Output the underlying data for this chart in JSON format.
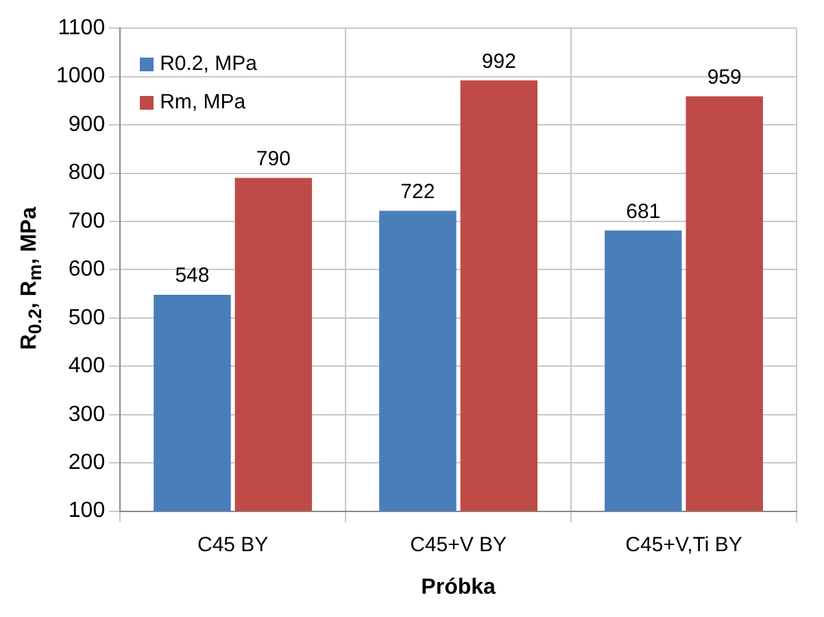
{
  "chart_data": {
    "type": "bar",
    "xlabel": "Próbka",
    "ylabel": "R$_{0.2}$, R$_{m}$,  MPa",
    "categories": [
      "C45 BY",
      "C45+V BY",
      "C45+V,Ti BY"
    ],
    "series": [
      {
        "name": "R0.2, MPa",
        "color": "#4a7ebb",
        "values": [
          548,
          722,
          681
        ]
      },
      {
        "name": "Rm, MPa",
        "color": "#be4b48",
        "values": [
          790,
          992,
          959
        ]
      }
    ],
    "ylim": [
      100,
      1100
    ],
    "yticks": [
      100,
      200,
      300,
      400,
      500,
      600,
      700,
      800,
      900,
      1000,
      1100
    ],
    "grid": true,
    "legend": "top left",
    "data_labels": true
  }
}
